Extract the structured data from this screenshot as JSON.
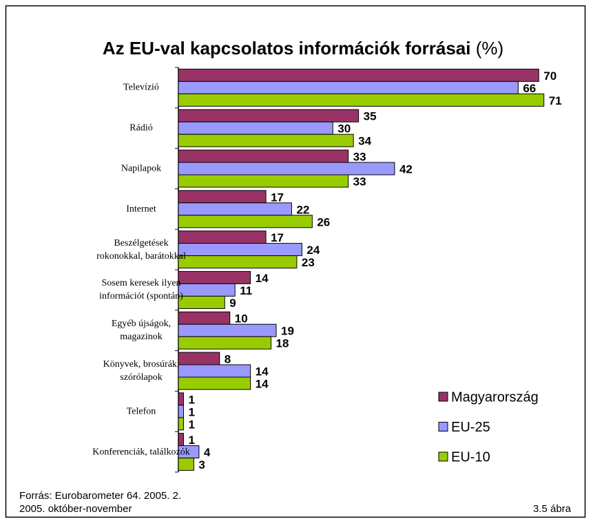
{
  "chart_data": {
    "type": "hbar",
    "title": "Az EU-val kapcsolatos információk forrásai",
    "title_unit": "(%)",
    "categories": [
      "Televízió",
      "Rádió",
      "Napilapok",
      "Internet",
      "Beszélgetések\nrokonokkal, barátokkal",
      "Sosem keresek ilyen\ninformációt (spontán)",
      "Egyéb újságok,\nmagazinok",
      "Könyvek, brosúrák,\nszórólapok",
      "Telefon",
      "Konferenciák, találkozók"
    ],
    "series": [
      {
        "name": "Magyarország",
        "color": "#993366",
        "values": [
          70,
          35,
          33,
          17,
          17,
          14,
          10,
          8,
          1,
          1
        ]
      },
      {
        "name": "EU-25",
        "color": "#9999ff",
        "values": [
          66,
          30,
          42,
          22,
          24,
          11,
          19,
          14,
          1,
          4
        ]
      },
      {
        "name": "EU-10",
        "color": "#99cc00",
        "values": [
          71,
          34,
          33,
          26,
          23,
          9,
          18,
          14,
          1,
          3
        ]
      }
    ],
    "xlim": [
      0,
      80
    ],
    "legend": "lower right",
    "source": [
      "Forrás: Eurobarometer 64. 2005. 2.",
      "2005. október-november"
    ],
    "figure_label": "3.5 ábra"
  }
}
